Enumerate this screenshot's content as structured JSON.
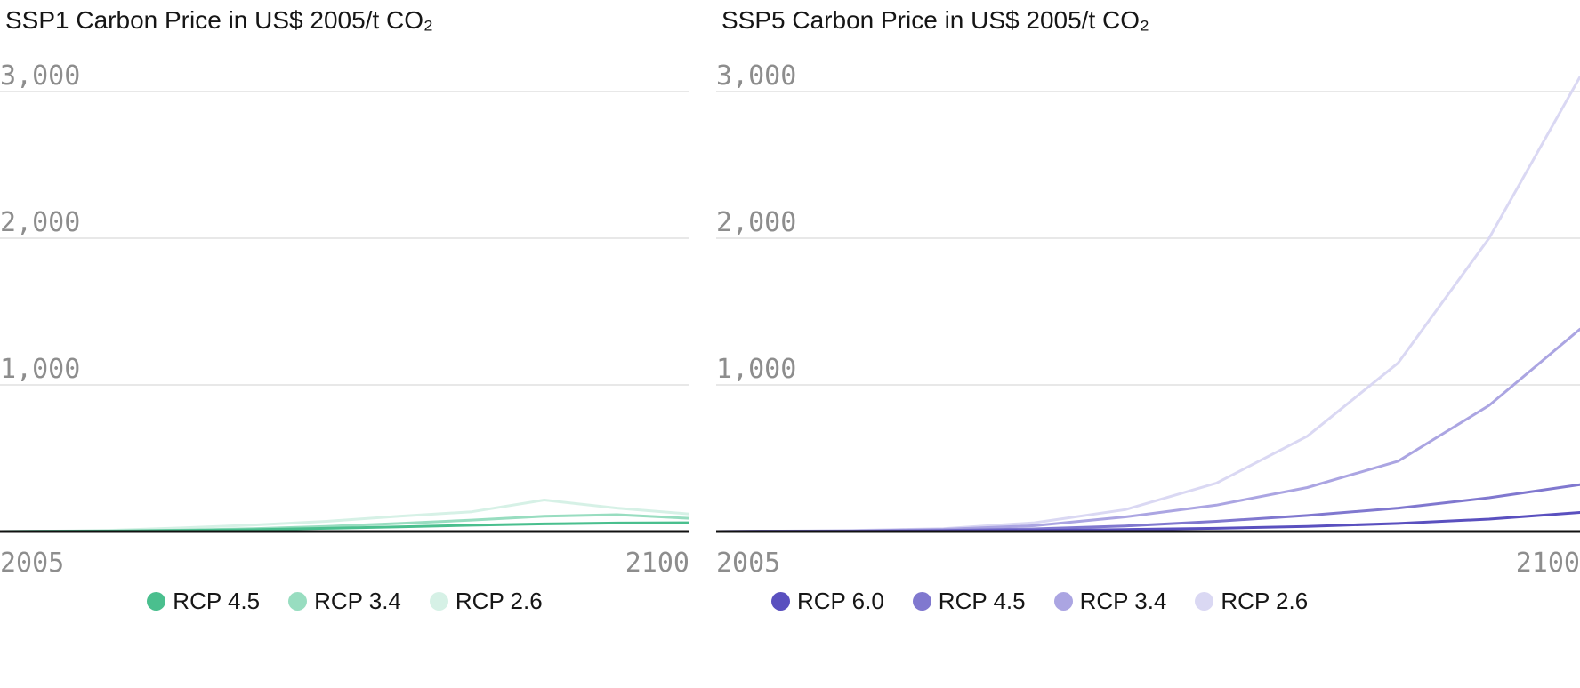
{
  "page": {
    "background": "#ffffff",
    "text_color": "#161616",
    "tick_color": "#8d8d8d",
    "gridline_color": "#e0e0e0",
    "axis_color": "#111111"
  },
  "chart_data": [
    {
      "type": "line",
      "title": "SSP1 Carbon Price in US$ 2005/t CO₂",
      "xlabel": "",
      "ylabel": "US$ 2005/t CO₂",
      "xlim": [
        2005,
        2100
      ],
      "ylim": [
        0,
        3000
      ],
      "grid": true,
      "legend_position": "bottom",
      "x": [
        2005,
        2010,
        2020,
        2030,
        2040,
        2050,
        2060,
        2070,
        2080,
        2090,
        2100
      ],
      "xticks": [
        "2005",
        "2100"
      ],
      "yticks": [
        {
          "value": 1000,
          "label": "1,000"
        },
        {
          "value": 2000,
          "label": "2,000"
        },
        {
          "value": 3000,
          "label": "3,000"
        }
      ],
      "series": [
        {
          "name": "RCP 4.5",
          "color": "#4abf8e",
          "values": [
            0,
            1,
            3,
            7,
            13,
            22,
            32,
            43,
            52,
            58,
            60
          ]
        },
        {
          "name": "RCP 3.4",
          "color": "#98ddc0",
          "values": [
            0,
            1,
            4,
            10,
            20,
            35,
            55,
            78,
            105,
            115,
            90
          ]
        },
        {
          "name": "RCP 2.6",
          "color": "#d6f1e6",
          "values": [
            0,
            2,
            8,
            25,
            45,
            70,
            105,
            135,
            215,
            160,
            120
          ]
        }
      ]
    },
    {
      "type": "line",
      "title": "SSP5 Carbon Price in US$ 2005/t CO₂",
      "xlabel": "",
      "ylabel": "US$ 2005/t CO₂",
      "xlim": [
        2005,
        2100
      ],
      "ylim": [
        0,
        3000
      ],
      "grid": true,
      "legend_position": "bottom",
      "x": [
        2005,
        2010,
        2020,
        2030,
        2040,
        2050,
        2060,
        2070,
        2080,
        2090,
        2100
      ],
      "xticks": [
        "2005",
        "2100"
      ],
      "yticks": [
        {
          "value": 1000,
          "label": "1,000"
        },
        {
          "value": 2000,
          "label": "2,000"
        },
        {
          "value": 3000,
          "label": "3,000"
        }
      ],
      "series": [
        {
          "name": "RCP 6.0",
          "color": "#5a50bf",
          "values": [
            0,
            1,
            2,
            4,
            8,
            14,
            22,
            35,
            55,
            85,
            130
          ]
        },
        {
          "name": "RCP 4.5",
          "color": "#8078cf",
          "values": [
            0,
            1,
            3,
            8,
            18,
            38,
            70,
            110,
            160,
            230,
            320
          ]
        },
        {
          "name": "RCP 3.4",
          "color": "#aba5e2",
          "values": [
            0,
            1,
            5,
            15,
            40,
            100,
            180,
            300,
            480,
            860,
            1380
          ]
        },
        {
          "name": "RCP 2.6",
          "color": "#dad8f3",
          "values": [
            0,
            2,
            8,
            20,
            60,
            150,
            330,
            650,
            1150,
            2000,
            3100
          ]
        }
      ]
    }
  ]
}
